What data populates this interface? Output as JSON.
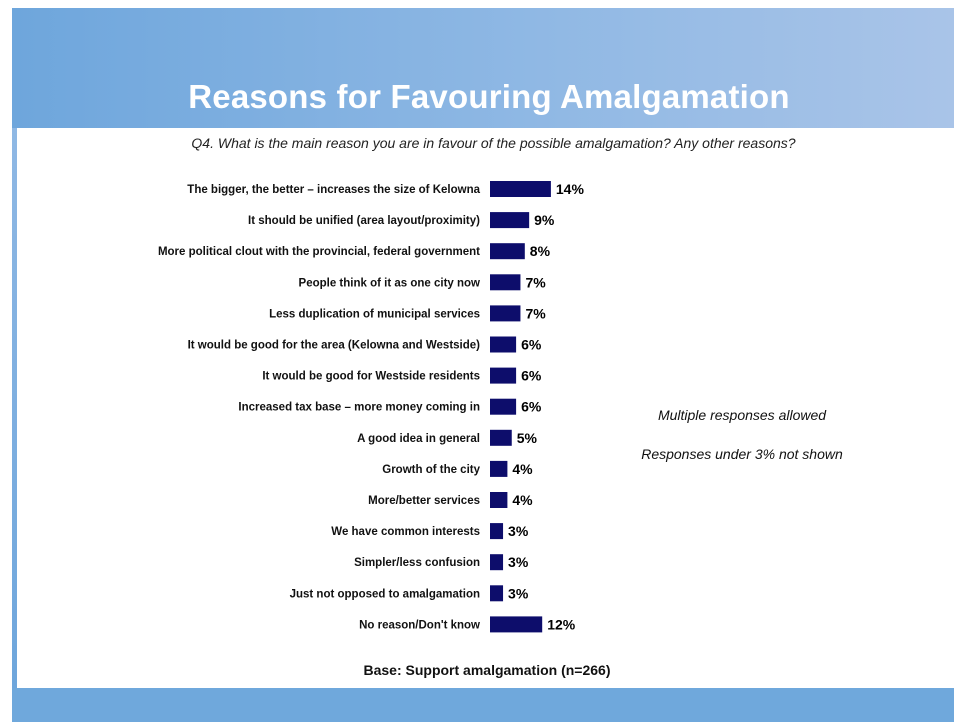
{
  "slide": {
    "title": "Reasons for Favouring Amalgamation",
    "question": "Q4. What is the main reason you are in favour of the possible amalgamation? Any other reasons?",
    "notes": [
      "Multiple responses allowed",
      "Responses under 3% not shown"
    ],
    "base": "Base: Support amalgamation (n=266)"
  },
  "colors": {
    "bar": "#0d0d6b",
    "header": "#7fb0e0",
    "title_text": "#ffffff"
  },
  "chart_data": {
    "type": "bar",
    "orientation": "horizontal",
    "categories": [
      "The bigger, the better – increases the size of Kelowna",
      "It should be unified (area layout/proximity)",
      "More political clout with the provincial, federal government",
      "People think of it as one city now",
      "Less duplication of municipal services",
      "It would be good for the area (Kelowna and Westside)",
      "It would be good for Westside residents",
      "Increased tax base – more money coming in",
      "A good idea in general",
      "Growth of the city",
      "More/better services",
      "We have common interests",
      "Simpler/less confusion",
      "Just not opposed to amalgamation",
      "No reason/Don't know"
    ],
    "values": [
      14,
      9,
      8,
      7,
      7,
      6,
      6,
      6,
      5,
      4,
      4,
      3,
      3,
      3,
      12
    ],
    "value_labels": [
      "14%",
      "9%",
      "8%",
      "7%",
      "7%",
      "6%",
      "6%",
      "6%",
      "5%",
      "4%",
      "4%",
      "3%",
      "3%",
      "3%",
      "12%"
    ],
    "unit": "%",
    "grid": false,
    "legend": "none"
  }
}
